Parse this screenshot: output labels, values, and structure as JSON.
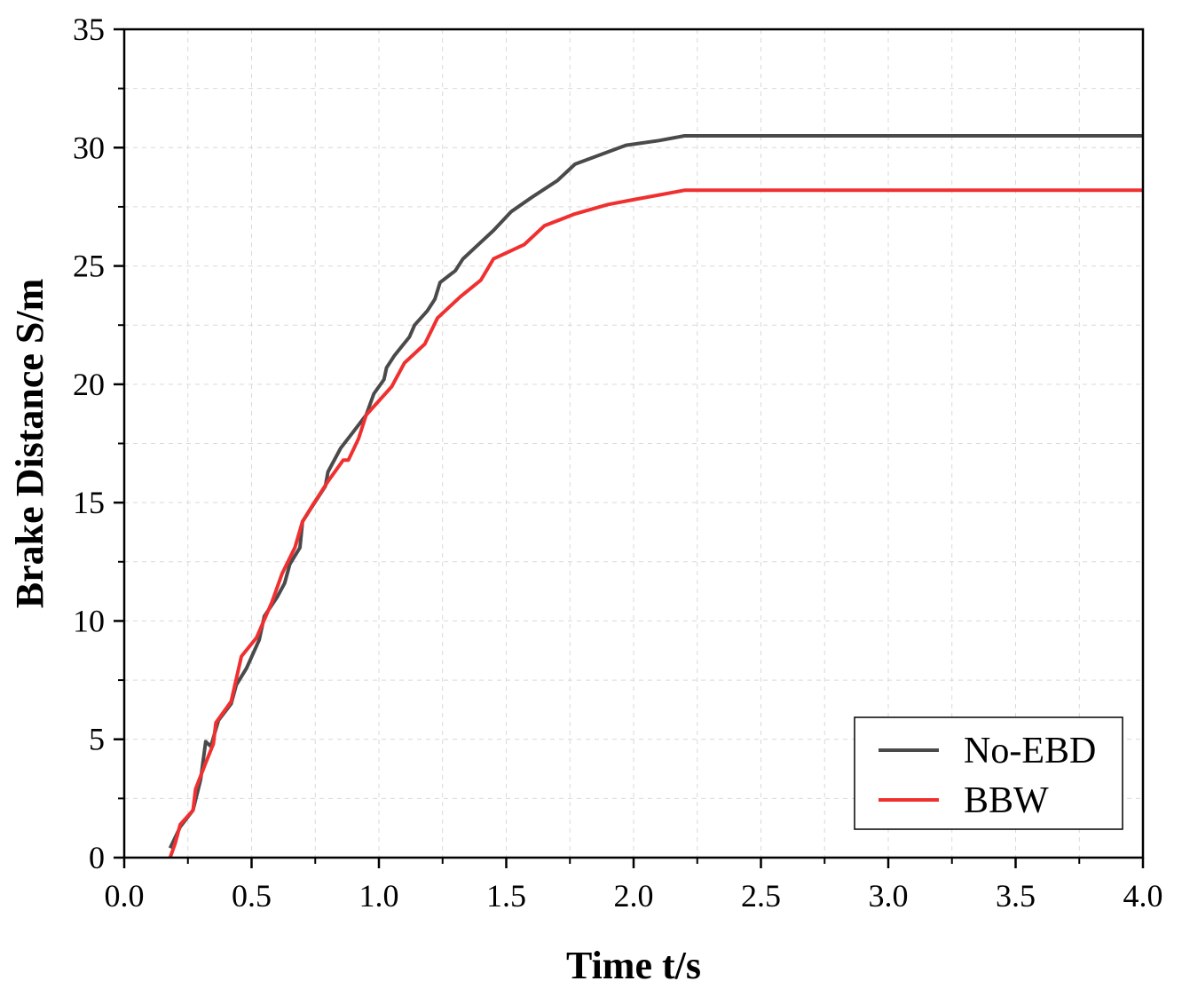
{
  "chart_data": {
    "type": "line",
    "xlabel": "Time t/s",
    "ylabel": "Brake Distance  S/m",
    "xlim": [
      0,
      4
    ],
    "ylim": [
      0,
      35
    ],
    "x_ticks": [
      0,
      0.5,
      1,
      1.5,
      2,
      2.5,
      3,
      3.5,
      4
    ],
    "x_tick_labels": [
      "0.0",
      "0.5",
      "1.0",
      "1.5",
      "2.0",
      "2.5",
      "3.0",
      "3.5",
      "4.0"
    ],
    "y_ticks": [
      0,
      5,
      10,
      15,
      20,
      25,
      30,
      35
    ],
    "y_tick_labels": [
      "0",
      "5",
      "10",
      "15",
      "20",
      "25",
      "30",
      "35"
    ],
    "grid": true,
    "legend_position": "bottom-right",
    "series": [
      {
        "name": "No-EBD",
        "color": "#4a4a4a",
        "points": [
          [
            0.18,
            0.4
          ],
          [
            0.22,
            1.3
          ],
          [
            0.27,
            2.0
          ],
          [
            0.3,
            3.3
          ],
          [
            0.32,
            4.9
          ],
          [
            0.34,
            4.7
          ],
          [
            0.37,
            5.8
          ],
          [
            0.42,
            6.5
          ],
          [
            0.44,
            7.3
          ],
          [
            0.48,
            8.0
          ],
          [
            0.53,
            9.2
          ],
          [
            0.55,
            10.2
          ],
          [
            0.6,
            11.0
          ],
          [
            0.63,
            11.6
          ],
          [
            0.65,
            12.4
          ],
          [
            0.69,
            13.1
          ],
          [
            0.7,
            14.2
          ],
          [
            0.73,
            14.7
          ],
          [
            0.79,
            15.7
          ],
          [
            0.8,
            16.3
          ],
          [
            0.85,
            17.3
          ],
          [
            0.9,
            18.0
          ],
          [
            0.95,
            18.7
          ],
          [
            0.98,
            19.6
          ],
          [
            1.02,
            20.2
          ],
          [
            1.03,
            20.7
          ],
          [
            1.06,
            21.2
          ],
          [
            1.12,
            22.0
          ],
          [
            1.14,
            22.5
          ],
          [
            1.19,
            23.1
          ],
          [
            1.22,
            23.6
          ],
          [
            1.24,
            24.3
          ],
          [
            1.3,
            24.8
          ],
          [
            1.33,
            25.3
          ],
          [
            1.38,
            25.8
          ],
          [
            1.45,
            26.5
          ],
          [
            1.52,
            27.3
          ],
          [
            1.6,
            27.9
          ],
          [
            1.7,
            28.6
          ],
          [
            1.77,
            29.3
          ],
          [
            1.87,
            29.7
          ],
          [
            1.97,
            30.1
          ],
          [
            2.1,
            30.3
          ],
          [
            2.2,
            30.5
          ],
          [
            4.0,
            30.5
          ]
        ]
      },
      {
        "name": "BBW",
        "color": "#f03030",
        "points": [
          [
            0.18,
            0.0
          ],
          [
            0.2,
            0.6
          ],
          [
            0.22,
            1.4
          ],
          [
            0.27,
            2.0
          ],
          [
            0.28,
            2.9
          ],
          [
            0.32,
            4.0
          ],
          [
            0.35,
            4.8
          ],
          [
            0.36,
            5.7
          ],
          [
            0.42,
            6.6
          ],
          [
            0.46,
            8.5
          ],
          [
            0.52,
            9.3
          ],
          [
            0.58,
            10.8
          ],
          [
            0.62,
            12.0
          ],
          [
            0.67,
            13.1
          ],
          [
            0.7,
            14.2
          ],
          [
            0.74,
            14.9
          ],
          [
            0.8,
            15.9
          ],
          [
            0.86,
            16.8
          ],
          [
            0.88,
            16.8
          ],
          [
            0.92,
            17.7
          ],
          [
            0.95,
            18.7
          ],
          [
            1.05,
            19.9
          ],
          [
            1.1,
            20.9
          ],
          [
            1.18,
            21.7
          ],
          [
            1.23,
            22.8
          ],
          [
            1.32,
            23.7
          ],
          [
            1.4,
            24.4
          ],
          [
            1.45,
            25.3
          ],
          [
            1.57,
            25.9
          ],
          [
            1.65,
            26.7
          ],
          [
            1.77,
            27.2
          ],
          [
            1.9,
            27.6
          ],
          [
            2.0,
            27.8
          ],
          [
            2.1,
            28.0
          ],
          [
            2.2,
            28.2
          ],
          [
            4.0,
            28.2
          ]
        ]
      }
    ]
  }
}
